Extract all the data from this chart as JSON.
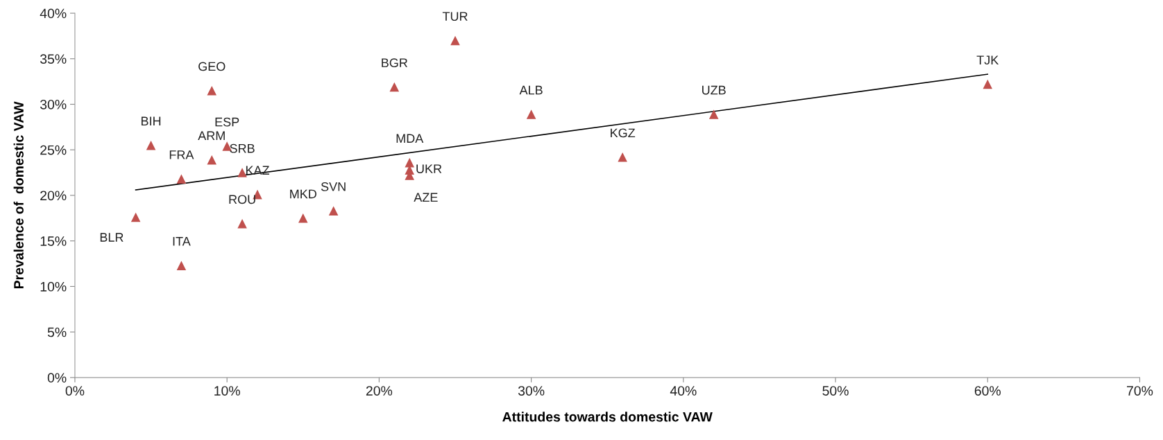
{
  "chart_data": {
    "type": "scatter",
    "xlabel": "Attitudes towards domestic VAW",
    "ylabel": "Prevalence of  domestic VAW",
    "series": [
      {
        "color": "#c0504d",
        "marker": "triangle",
        "x": [
          4,
          5,
          7,
          7,
          9,
          9,
          10,
          11,
          12,
          11,
          15,
          17,
          21,
          25,
          22,
          22,
          22,
          30,
          36,
          42,
          60
        ],
        "values": [
          17.6,
          25.5,
          21.8,
          12.3,
          31.5,
          23.9,
          25.4,
          22.5,
          20.1,
          16.9,
          17.5,
          18.3,
          31.9,
          37.0,
          23.6,
          22.8,
          22.2,
          28.9,
          24.2,
          28.9,
          32.2
        ]
      },
      {
        "type": "line",
        "color": "#000000",
        "marker": "none",
        "line_style": "solid",
        "x": [
          4,
          60
        ],
        "values": [
          20.6,
          33.3
        ]
      }
    ],
    "annotations": [
      {
        "text": "BLR",
        "x": 4,
        "y": 17.6
      },
      {
        "text": "BIH",
        "x": 5,
        "y": 25.5
      },
      {
        "text": "FRA",
        "x": 7,
        "y": 21.8
      },
      {
        "text": "ITA",
        "x": 7,
        "y": 12.3
      },
      {
        "text": "GEO",
        "x": 9,
        "y": 31.5
      },
      {
        "text": "ARM",
        "x": 9,
        "y": 23.9
      },
      {
        "text": "ESP",
        "x": 10,
        "y": 25.4
      },
      {
        "text": "SRB",
        "x": 11,
        "y": 22.5
      },
      {
        "text": "KAZ",
        "x": 12,
        "y": 20.1
      },
      {
        "text": "ROU",
        "x": 11,
        "y": 16.9
      },
      {
        "text": "MKD",
        "x": 15,
        "y": 17.5
      },
      {
        "text": "SVN",
        "x": 17,
        "y": 18.3
      },
      {
        "text": "BGR",
        "x": 21,
        "y": 31.9
      },
      {
        "text": "TUR",
        "x": 25,
        "y": 37.0
      },
      {
        "text": "MDA",
        "x": 22,
        "y": 23.6
      },
      {
        "text": "UKR",
        "x": 22,
        "y": 22.8
      },
      {
        "text": "AZE",
        "x": 22,
        "y": 22.2
      },
      {
        "text": "ALB",
        "x": 30,
        "y": 28.9
      },
      {
        "text": "KGZ",
        "x": 36,
        "y": 24.2
      },
      {
        "text": "UZB",
        "x": 42,
        "y": 28.9
      },
      {
        "text": "TJK",
        "x": 60,
        "y": 32.2
      }
    ],
    "xlim": [
      0,
      70
    ],
    "xticks": [
      {
        "value": 0,
        "label": "0%"
      },
      {
        "value": 10,
        "label": "10%"
      },
      {
        "value": 20,
        "label": "20%"
      },
      {
        "value": 30,
        "label": "30%"
      },
      {
        "value": 40,
        "label": "40%"
      },
      {
        "value": 50,
        "label": "50%"
      },
      {
        "value": 60,
        "label": "60%"
      },
      {
        "value": 70,
        "label": "70%"
      }
    ],
    "ylim": [
      0,
      40
    ],
    "yticks": [
      {
        "value": 0,
        "label": "0%"
      },
      {
        "value": 5,
        "label": "5%"
      },
      {
        "value": 10,
        "label": "10%"
      },
      {
        "value": 15,
        "label": "15%"
      },
      {
        "value": 20,
        "label": "20%"
      },
      {
        "value": 25,
        "label": "25%"
      },
      {
        "value": 30,
        "label": "30%"
      },
      {
        "value": 35,
        "label": "35%"
      },
      {
        "value": 40,
        "label": "40%"
      }
    ],
    "grid": false,
    "legend": false
  }
}
